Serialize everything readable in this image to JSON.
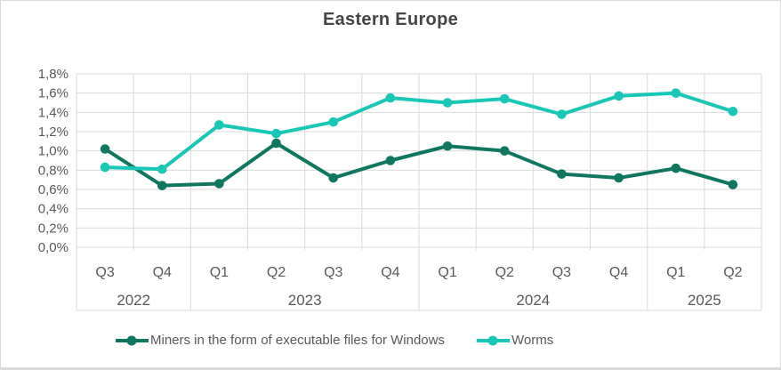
{
  "title": "Eastern Europe",
  "colors": {
    "miners_series": "#0f7660",
    "worms_series": "#19c7b6",
    "gridline": "#d9d9d9",
    "axis_text": "#595959",
    "title_text": "#454545"
  },
  "chart_data": {
    "type": "line",
    "title": "Eastern Europe",
    "x_quarters": [
      "Q3",
      "Q4",
      "Q1",
      "Q2",
      "Q3",
      "Q4",
      "Q1",
      "Q2",
      "Q3",
      "Q4",
      "Q1",
      "Q2"
    ],
    "x_year_groups": [
      {
        "label": "2022",
        "span": 2
      },
      {
        "label": "2023",
        "span": 4
      },
      {
        "label": "2024",
        "span": 4
      },
      {
        "label": "2025",
        "span": 2
      }
    ],
    "ylim": [
      0,
      1.8
    ],
    "y_step": 0.2,
    "y_tick_labels": [
      "1,8%",
      "1,6%",
      "1,4%",
      "1,2%",
      "1,0%",
      "0,8%",
      "0,6%",
      "0,4%",
      "0,2%",
      "0,0%"
    ],
    "grid": true,
    "legend_position": "bottom",
    "series": [
      {
        "name": "Miners in the form of executable files for Windows",
        "color": "#0f7660",
        "values": [
          1.02,
          0.64,
          0.66,
          1.08,
          0.72,
          0.9,
          1.05,
          1.0,
          0.76,
          0.72,
          0.82,
          0.65
        ]
      },
      {
        "name": "Worms",
        "color": "#19c7b6",
        "values": [
          0.83,
          0.81,
          1.27,
          1.18,
          1.3,
          1.55,
          1.5,
          1.54,
          1.38,
          1.57,
          1.6,
          1.41
        ]
      }
    ]
  }
}
